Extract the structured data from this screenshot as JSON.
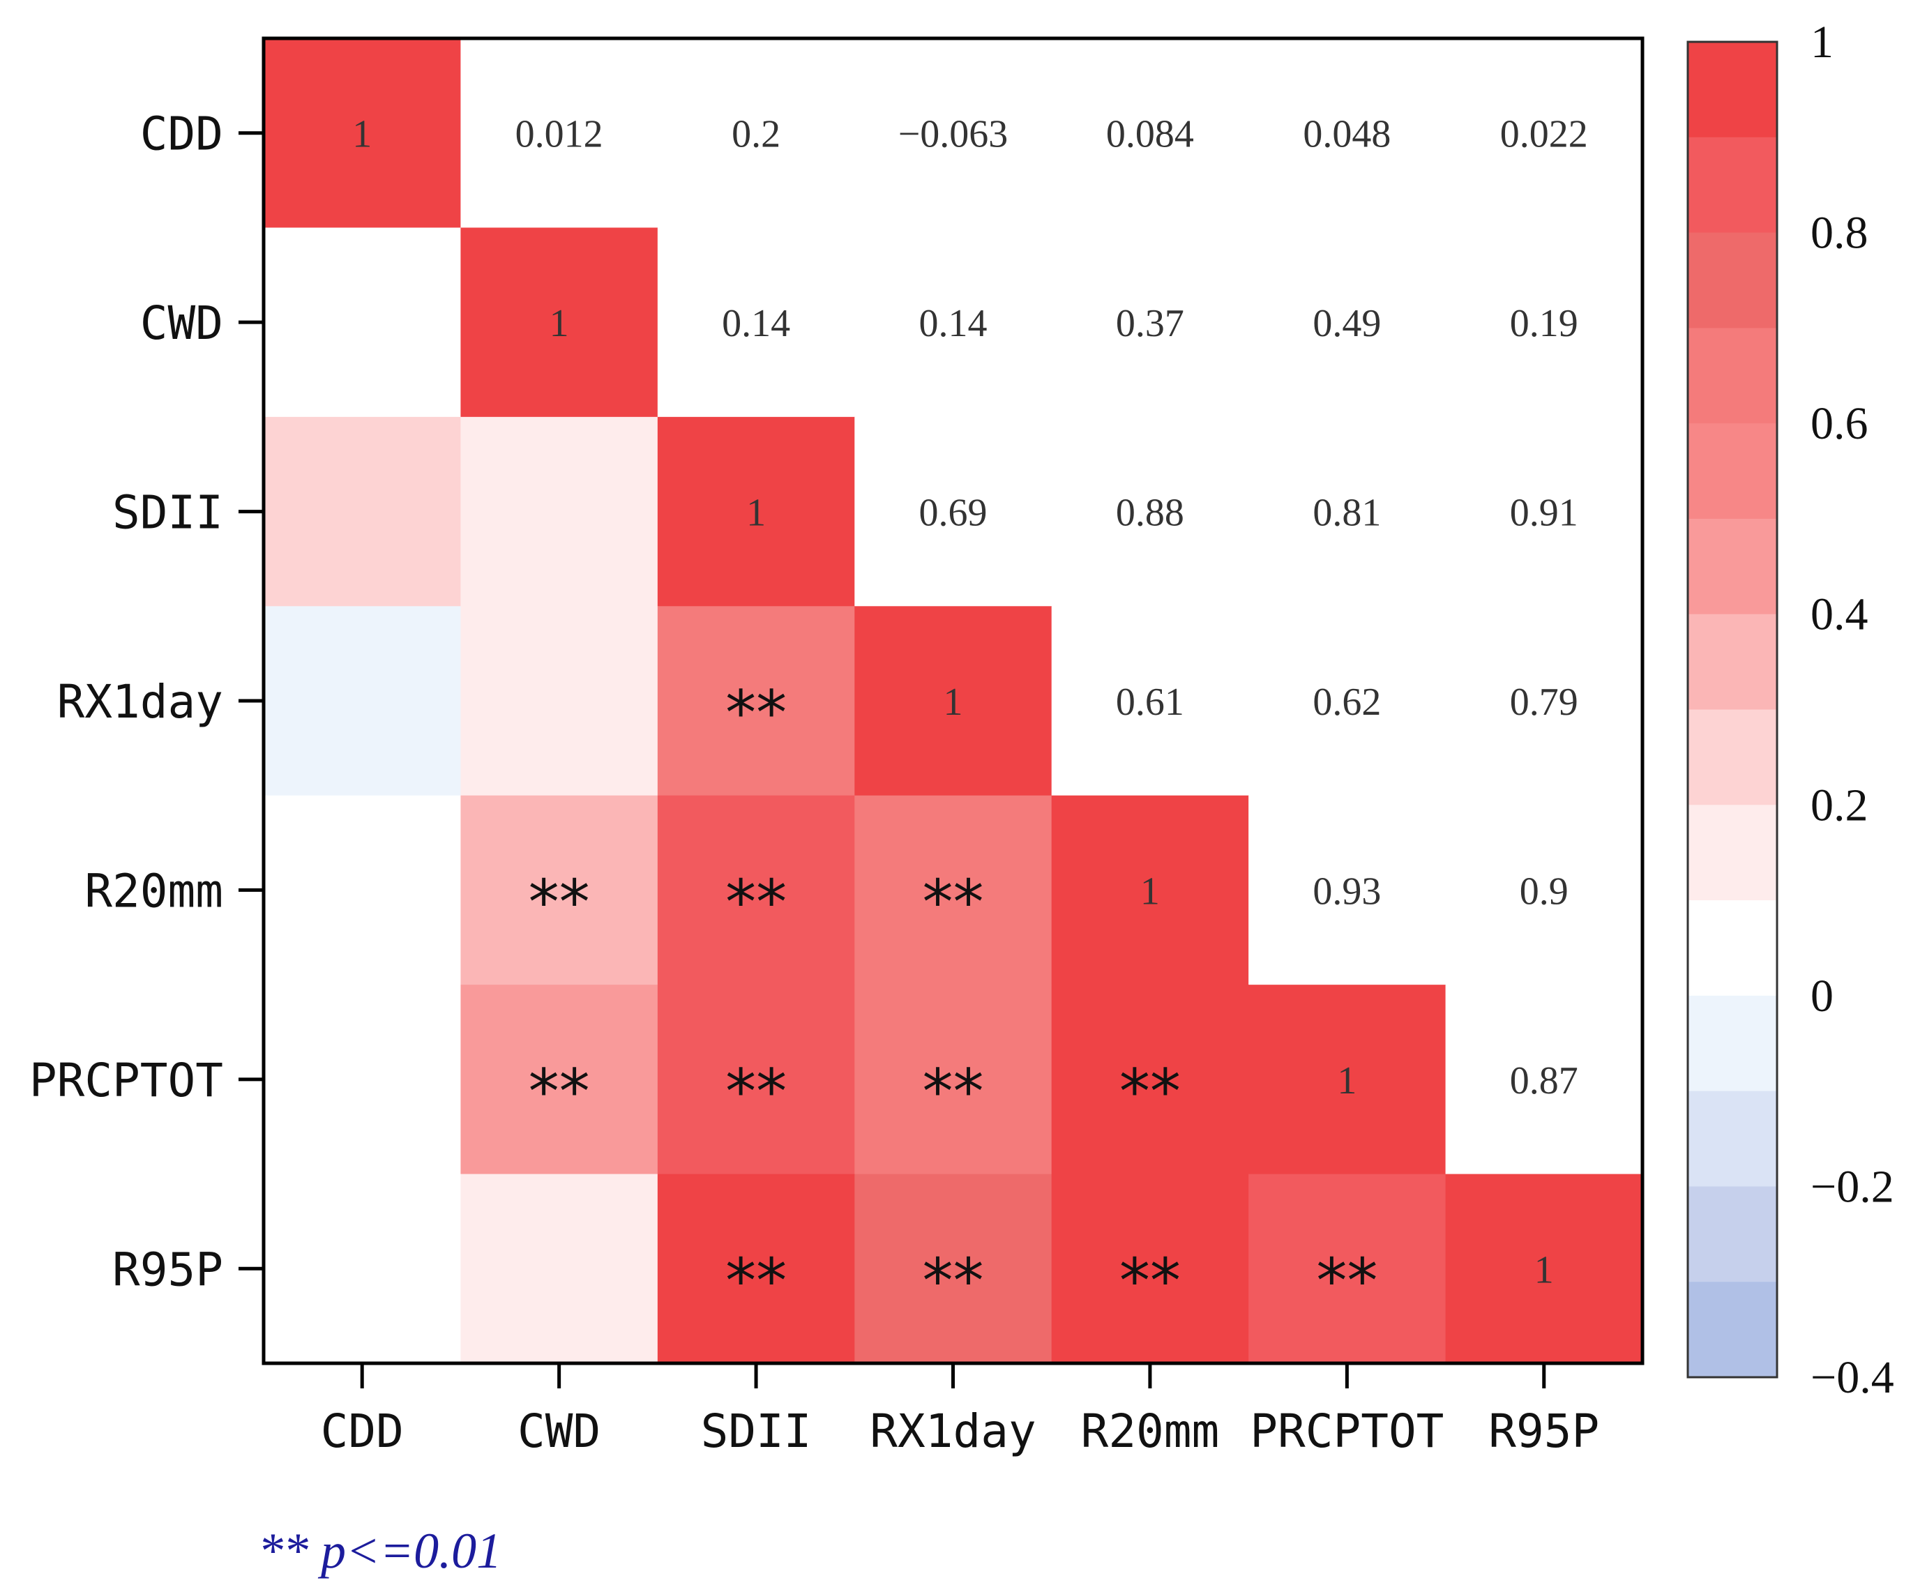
{
  "chart_data": {
    "type": "heatmap",
    "title": "",
    "variables": [
      "CDD",
      "CWD",
      "SDII",
      "RX1day",
      "R20mm",
      "PRCPTOT",
      "R95P"
    ],
    "upper_values": [
      [
        "1",
        "0.012",
        "0.2",
        "−0.063",
        "0.084",
        "0.048",
        "0.022"
      ],
      [
        "",
        "1",
        "0.14",
        "0.14",
        "0.37",
        "0.49",
        "0.19"
      ],
      [
        "",
        "",
        "1",
        "0.69",
        "0.88",
        "0.81",
        "0.91"
      ],
      [
        "",
        "",
        "",
        "1",
        "0.61",
        "0.62",
        "0.79"
      ],
      [
        "",
        "",
        "",
        "",
        "1",
        "0.93",
        "0.9"
      ],
      [
        "",
        "",
        "",
        "",
        "",
        "1",
        "0.87"
      ],
      [
        "",
        "",
        "",
        "",
        "",
        "",
        "1"
      ]
    ],
    "significance_marks": [
      [
        "",
        "",
        "",
        "",
        "",
        "",
        ""
      ],
      [
        "",
        "",
        "",
        "",
        "",
        "",
        ""
      ],
      [
        "",
        "",
        "",
        "",
        "",
        "",
        ""
      ],
      [
        "",
        "",
        "**",
        "",
        "",
        "",
        ""
      ],
      [
        "",
        "**",
        "**",
        "**",
        "",
        "",
        ""
      ],
      [
        "",
        "**",
        "**",
        "**",
        "**",
        "",
        ""
      ],
      [
        "",
        "",
        "**",
        "**",
        "**",
        "**",
        ""
      ]
    ],
    "colorbar": {
      "range": [
        -0.4,
        1
      ],
      "step": 0.1,
      "ticks": [
        "1",
        "0.8",
        "0.6",
        "0.4",
        "0.2",
        "0",
        "−0.2",
        "−0.4"
      ],
      "tick_values": [
        1,
        0.8,
        0.6,
        0.4,
        0.2,
        0,
        -0.2,
        -0.4
      ]
    },
    "colors": {
      "-0.4": "#b0c0e6",
      "-0.3": "#c6d0ec",
      "-0.2": "#dae3f5",
      "-0.1": "#edf4fc",
      "0": "#ffffff",
      "0.1": "#feecec",
      "0.2": "#fdd3d3",
      "0.3": "#fbb6b6",
      "0.4": "#f99a9a",
      "0.5": "#f78787",
      "0.6": "#f47b7b",
      "0.7": "#ee6a6a",
      "0.8": "#f25a5e",
      "0.9": "#ef4346"
    },
    "note": "** p<=0.01"
  }
}
